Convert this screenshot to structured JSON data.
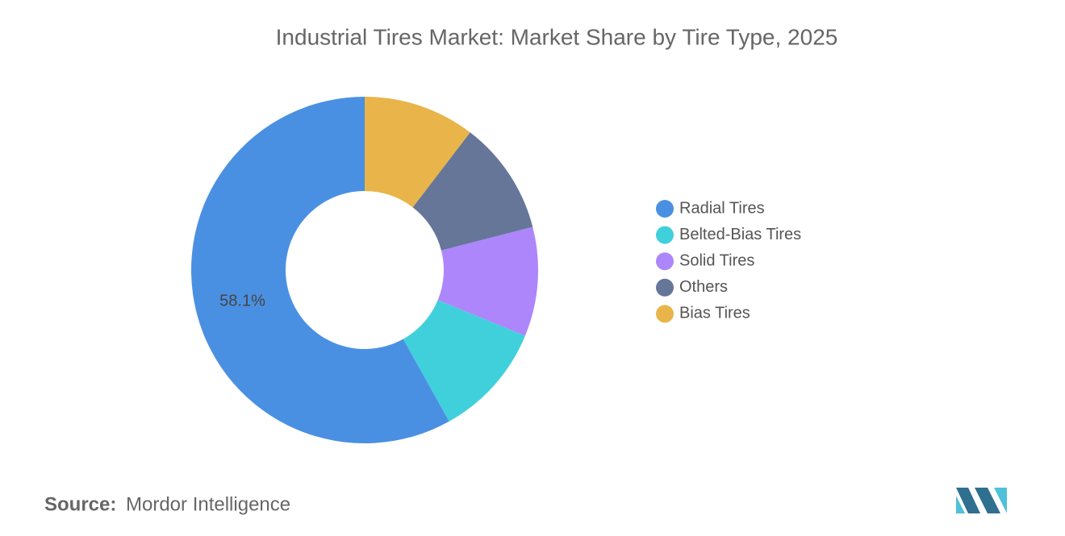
{
  "chart_data": {
    "type": "donut",
    "title": "Industrial Tires Market: Market Share by Tire Type, 2025",
    "series": [
      {
        "name": "Radial Tires",
        "color": "#4a90e2",
        "values": [
          58.1
        ],
        "value_labels": [
          "58.1%"
        ]
      },
      {
        "name": "Belted-Bias Tires",
        "color": "#40d0db",
        "values": [
          10.7
        ]
      },
      {
        "name": "Solid Tires",
        "color": "#ad86fb",
        "values": [
          10.2
        ]
      },
      {
        "name": "Others",
        "color": "#657699",
        "values": [
          10.6
        ]
      },
      {
        "name": "Bias Tires",
        "color": "#e9b54a",
        "values": [
          10.4
        ]
      }
    ],
    "legend": "right",
    "source_label": "Source:",
    "source": "Mordor Intelligence"
  }
}
